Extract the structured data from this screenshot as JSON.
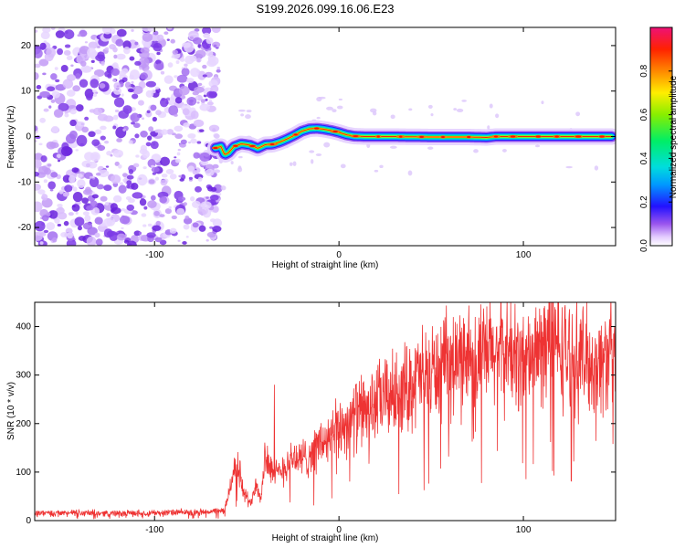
{
  "title": "S199.2026.099.16.06.E23",
  "chart_data": [
    {
      "type": "heatmap",
      "xlabel": "Height of straight line (km)",
      "ylabel": "Frequency (Hz)",
      "xlim": [
        -165,
        150
      ],
      "ylim": [
        -24,
        24
      ],
      "xticks": [
        -100,
        0,
        100
      ],
      "yticks": [
        -20,
        -10,
        0,
        10,
        20
      ],
      "noise_region_end_km": -68,
      "ridge": {
        "x": [
          -67,
          -64,
          -62,
          -60,
          -57,
          -53,
          -48,
          -44,
          -40,
          -36,
          -32,
          -28,
          -24,
          -20,
          -16,
          -12,
          -8,
          -4,
          0,
          4,
          8,
          14,
          30,
          50,
          70,
          80,
          85,
          100,
          120,
          148
        ],
        "y": [
          -2.5,
          -2.2,
          -4.0,
          -3.6,
          -2.2,
          -1.6,
          -1.9,
          -2.6,
          -1.8,
          -1.7,
          -1.2,
          -0.5,
          0.3,
          1.2,
          1.7,
          1.8,
          1.6,
          1.3,
          0.9,
          0.4,
          0.1,
          0.0,
          0.0,
          -0.1,
          -0.1,
          -0.2,
          0.0,
          0.0,
          0.0,
          0.0
        ]
      },
      "colorbar": {
        "label": "Normalized spectral amplitude",
        "range": [
          0.0,
          1.0
        ],
        "ticks": [
          "0.0",
          "0.2",
          "0.4",
          "0.6",
          "0.8"
        ]
      }
    },
    {
      "type": "line",
      "xlabel": "Height of straight line (km)",
      "ylabel": "SNR (10 * v/v)",
      "xlim": [
        -165,
        150
      ],
      "ylim": [
        0,
        450
      ],
      "xticks": [
        -100,
        0,
        100
      ],
      "yticks": [
        0,
        100,
        200,
        300,
        400
      ],
      "color": "#ee3333",
      "series": [
        {
          "name": "SNR",
          "x": [
            -165,
            -140,
            -120,
            -100,
            -80,
            -62,
            -58,
            -55,
            -52,
            -48,
            -45,
            -42,
            -40,
            -35,
            -30,
            -25,
            -20,
            -15,
            -10,
            -5,
            0,
            5,
            10,
            15,
            20,
            25,
            30,
            35,
            40,
            45,
            50,
            55,
            60,
            65,
            70,
            75,
            80,
            85,
            90,
            95,
            100,
            105,
            110,
            115,
            120,
            125,
            130,
            135,
            140,
            145,
            150
          ],
          "y": [
            15,
            16,
            15,
            16,
            17,
            20,
            90,
            120,
            60,
            35,
            80,
            50,
            140,
            90,
            110,
            130,
            125,
            140,
            160,
            165,
            190,
            205,
            220,
            230,
            240,
            255,
            260,
            270,
            285,
            300,
            305,
            310,
            320,
            325,
            345,
            330,
            340,
            345,
            350,
            335,
            330,
            340,
            355,
            390,
            350,
            340,
            335,
            330,
            320,
            335,
            345
          ],
          "spikes": [
            {
              "x": -35,
              "y": 280
            },
            {
              "x": 18,
              "y": 295
            },
            {
              "x": 68,
              "y": 405
            },
            {
              "x": 117,
              "y": 440
            },
            {
              "x": 100,
              "y": 420
            }
          ]
        }
      ]
    }
  ]
}
